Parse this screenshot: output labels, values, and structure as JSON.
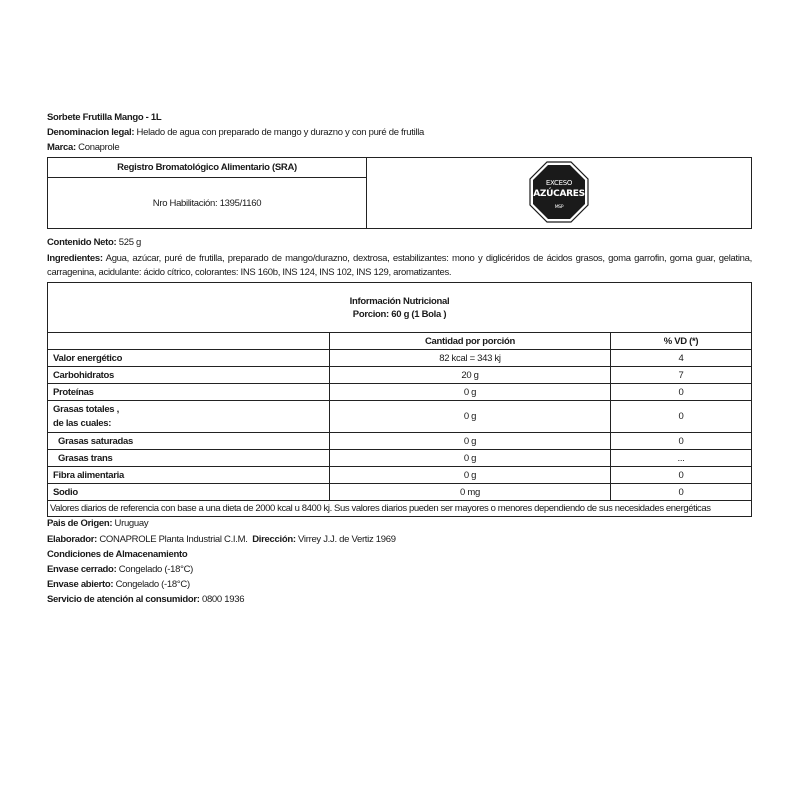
{
  "product": {
    "title": "Sorbete Frutilla Mango - 1L",
    "denominacion_label": "Denominacion legal:",
    "denominacion_value": " Helado de agua con preparado de mango y durazno y con puré de frutilla",
    "marca_label": "Marca:",
    "marca_value": " Conaprole"
  },
  "registro": {
    "header": "Registro Bromatológico Alimentario (SRA)",
    "value": "Nro Habilitación: 1395/1160",
    "warning_seal": {
      "line1": "EXCESO",
      "line2": "AZÚCARES",
      "line3": "MSP",
      "color": "#1a1a1a"
    }
  },
  "contenido": {
    "label": "Contenido Neto:",
    "value": " 525 g"
  },
  "ingredientes": {
    "label": "Ingredientes:",
    "value": " Agua, azúcar, puré de frutilla, preparado de mango/durazno, dextrosa, estabilizantes: mono y diglicéridos de ácidos grasos, goma garrofin, goma guar, gelatina, carragenina, acidulante: ácido cítrico, colorantes: INS 160b, INS 124, INS 102, INS 129, aromatizantes."
  },
  "nutrition": {
    "title": "Información Nutricional",
    "portion": "Porcion: 60 g (1 Bola )",
    "col_amount": "Cantidad por porción",
    "col_vd": "% VD (*)",
    "rows": [
      {
        "name": "Valor energético",
        "amount": "82 kcal = 343 kj",
        "vd": "4"
      },
      {
        "name": "Carbohidratos",
        "amount": "20 g",
        "vd": "7"
      },
      {
        "name": "Proteínas",
        "amount": "0 g",
        "vd": "0"
      },
      {
        "name": "Grasas totales ,",
        "name2": "de las cuales:",
        "amount": "0 g",
        "vd": "0"
      },
      {
        "name": "Grasas saturadas",
        "amount": "0 g",
        "vd": "0"
      },
      {
        "name": "Grasas trans",
        "amount": "0 g",
        "vd": "..."
      },
      {
        "name": "Fibra alimentaria",
        "amount": "0 g",
        "vd": "0"
      },
      {
        "name": "Sodio",
        "amount": "0 mg",
        "vd": "0"
      }
    ],
    "footnote": "Valores diarios de referencia con base a una dieta de 2000 kcal u 8400 kj. Sus valores diarios pueden ser mayores o menores dependiendo de sus necesidades energéticas"
  },
  "footer": {
    "origen_label": "Pais de Origen:",
    "origen_value": " Uruguay",
    "elaborador_label": "Elaborador:",
    "elaborador_value": " CONAPROLE Planta Industrial C.I.M.  ",
    "direccion_label": "Dirección:",
    "direccion_value": " Virrey J.J. de Vertiz 1969",
    "condiciones": "Condiciones de Almacenamiento",
    "cerrado_label": "Envase cerrado:",
    "cerrado_value": " Congelado (-18°C)",
    "abierto_label": "Envase abierto:",
    "abierto_value": " Congelado (-18°C)",
    "servicio_label": "Servicio de atención al consumidor:",
    "servicio_value": " 0800 1936"
  }
}
